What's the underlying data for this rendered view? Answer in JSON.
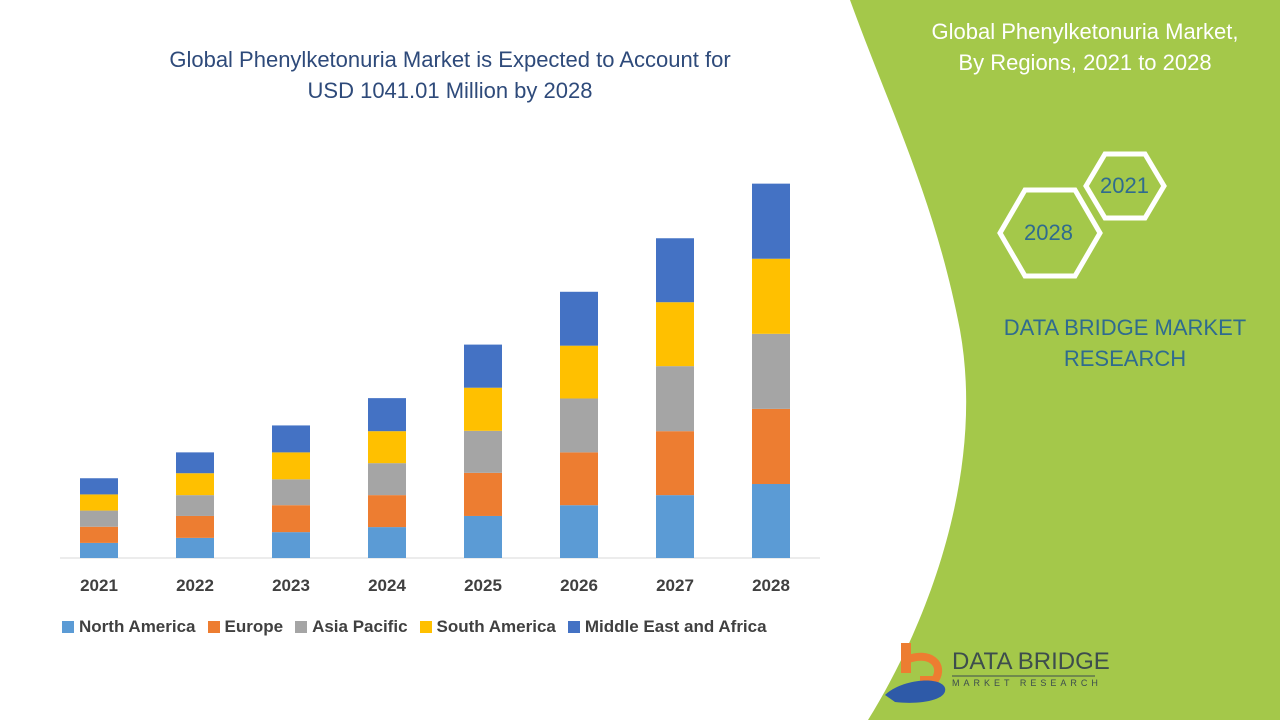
{
  "chart_data": {
    "type": "bar",
    "stacked": true,
    "title": "Global Phenylketonuria Market is Expected to Account for USD 1041.01 Million by 2028",
    "categories": [
      "2021",
      "2022",
      "2023",
      "2024",
      "2025",
      "2026",
      "2027",
      "2028"
    ],
    "series": [
      {
        "name": "North America",
        "color": "#5b9bd5",
        "values": [
          42,
          56,
          72,
          86,
          117,
          147,
          175,
          206
        ]
      },
      {
        "name": "Europe",
        "color": "#ed7d31",
        "values": [
          45,
          61,
          75,
          89,
          120,
          147,
          178,
          209
        ]
      },
      {
        "name": "Asia Pacific",
        "color": "#a5a5a5",
        "values": [
          45,
          58,
          72,
          89,
          117,
          150,
          181,
          209
        ]
      },
      {
        "name": "South America",
        "color": "#ffc000",
        "values": [
          45,
          61,
          75,
          89,
          120,
          147,
          178,
          209
        ]
      },
      {
        "name": "Middle East and Africa",
        "color": "#4472c4",
        "values": [
          45,
          58,
          75,
          92,
          120,
          150,
          178,
          209
        ]
      }
    ],
    "ylim": [
      0,
      1041.01
    ],
    "y_axis_visible": false,
    "grid": false,
    "legend_position": "bottom"
  },
  "title_line1": "Global Phenylketonuria Market is Expected to Account for",
  "title_line2": "USD 1041.01 Million by 2028",
  "side_panel": {
    "title_line1": "Global Phenylketonuria Market,",
    "title_line2": "By Regions, 2021 to 2028",
    "hex_start": "2021",
    "hex_end": "2028",
    "brand_line1": "DATA BRIDGE MARKET",
    "brand_line2": "RESEARCH",
    "accent_color": "#a4c84a"
  },
  "logo": {
    "name": "DATA BRIDGE",
    "sub": "MARKET RESEARCH"
  }
}
